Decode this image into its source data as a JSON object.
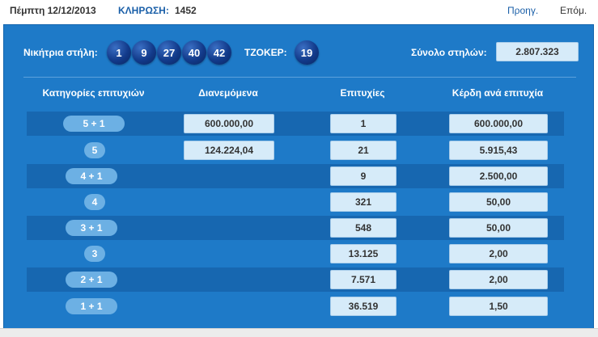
{
  "header": {
    "date": "Πέμπτη 12/12/2013",
    "draw_label": "ΚΛΗΡΩΣΗ:",
    "draw_number": "1452",
    "prev_label": "Προηγ.",
    "next_label": "Επόμ."
  },
  "results": {
    "winning_label": "Νικήτρια στήλη:",
    "numbers": [
      "1",
      "9",
      "27",
      "40",
      "42"
    ],
    "joker_label": "ΤΖΟΚΕΡ:",
    "joker_number": "19",
    "total_label": "Σύνολο στηλών:",
    "total_value": "2.807.323"
  },
  "table": {
    "headers": {
      "category": "Κατηγορίες επιτυχιών",
      "distributed": "Διανεμόμενα",
      "winners": "Επιτυχίες",
      "prize": "Κέρδη ανά επιτυχία"
    },
    "rows": [
      {
        "category": "5 + 1",
        "distributed": "600.000,00",
        "winners": "1",
        "prize": "600.000,00"
      },
      {
        "category": "5",
        "distributed": "124.224,04",
        "winners": "21",
        "prize": "5.915,43"
      },
      {
        "category": "4 + 1",
        "distributed": "",
        "winners": "9",
        "prize": "2.500,00"
      },
      {
        "category": "4",
        "distributed": "",
        "winners": "321",
        "prize": "50,00"
      },
      {
        "category": "3 + 1",
        "distributed": "",
        "winners": "548",
        "prize": "50,00"
      },
      {
        "category": "3",
        "distributed": "",
        "winners": "13.125",
        "prize": "2,00"
      },
      {
        "category": "2 + 1",
        "distributed": "",
        "winners": "7.571",
        "prize": "2,00"
      },
      {
        "category": "1 + 1",
        "distributed": "",
        "winners": "36.519",
        "prize": "1,50"
      }
    ]
  },
  "colors": {
    "panel": "#1e7ac8",
    "row_dark": "#1767b0",
    "ball": "#123a8a",
    "cell": "#d6ebf9",
    "pill": "#6cb0e4",
    "link": "#1a5fa8"
  }
}
